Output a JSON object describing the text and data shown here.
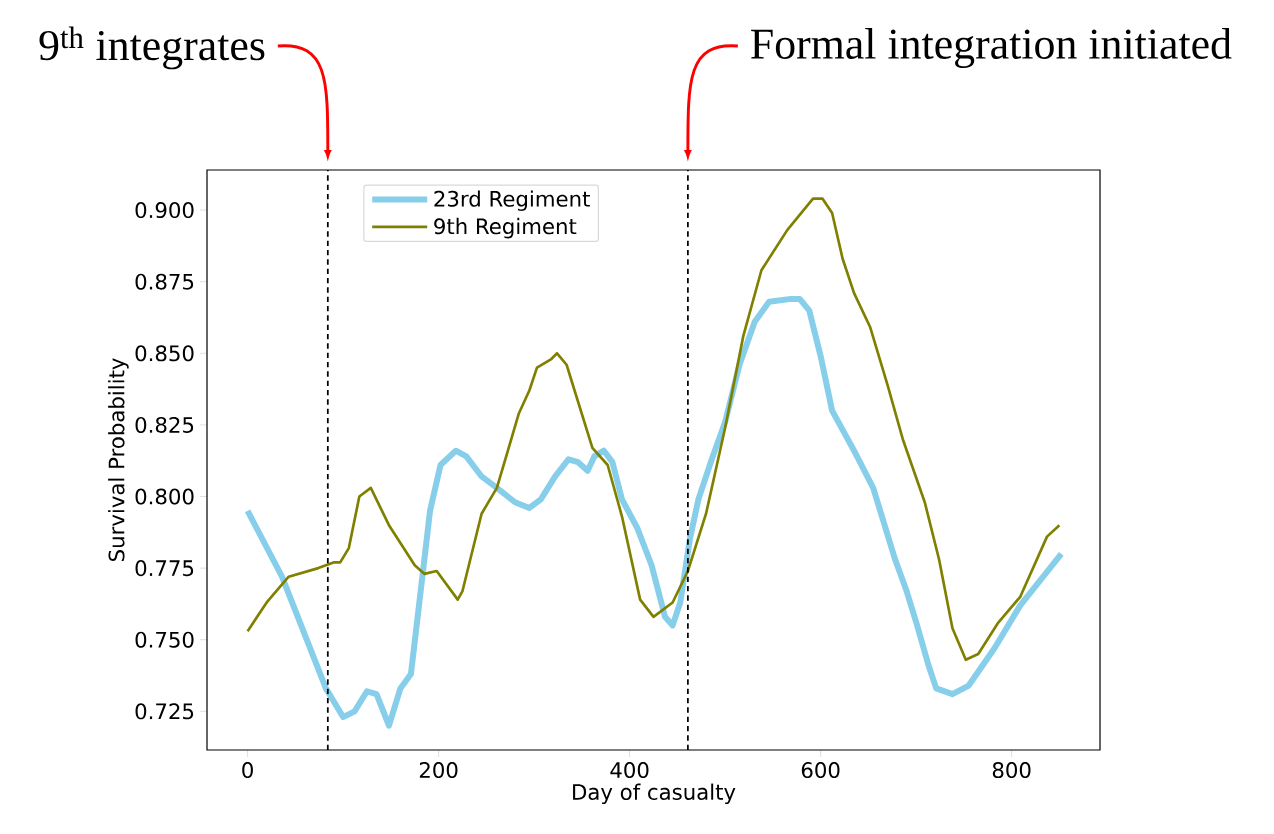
{
  "chart_data": {
    "type": "line",
    "xlabel": "Day of casualty",
    "ylabel": "Survival Probability",
    "xlim": [
      -42.5,
      892.5
    ],
    "ylim": [
      0.7115,
      0.914
    ],
    "xticks": [
      0,
      200,
      400,
      600,
      800
    ],
    "yticks": [
      0.725,
      {
        "value": 0.75,
        "label": "0.750"
      },
      0.775,
      {
        "value": 0.8,
        "label": "0.800"
      },
      0.825,
      {
        "value": 0.85,
        "label": "0.850"
      },
      0.875,
      {
        "value": 0.9,
        "label": "0.900"
      }
    ],
    "legend": "top",
    "marker": "none",
    "line_style": "solid",
    "ref_lines": [
      {
        "axis": "x",
        "value": 84,
        "color": "#000000",
        "line_style": "dashed"
      },
      {
        "axis": "x",
        "value": 461,
        "color": "#000000",
        "line_style": "dashed"
      }
    ],
    "annotations": [
      "9$^{th}$ integrates",
      "Formal integration initiated"
    ],
    "series": [
      {
        "name": "23rd Regiment",
        "color": "#87ceeb",
        "x": [
          0,
          36,
          82,
          100,
          112,
          125,
          135,
          148,
          160,
          171,
          183,
          191,
          202,
          218,
          229,
          245,
          261,
          280,
          295,
          307,
          322,
          336,
          346,
          356,
          363,
          373,
          382,
          392,
          408,
          423,
          437,
          445,
          453,
          463,
          472,
          486,
          500,
          515,
          531,
          546,
          569,
          578,
          588,
          600,
          612,
          635,
          655,
          678,
          690,
          701,
          713,
          721,
          738,
          755,
          782,
          809,
          833,
          852
        ],
        "values": [
          0.795,
          0.772,
          0.733,
          0.723,
          0.725,
          0.732,
          0.731,
          0.72,
          0.733,
          0.738,
          0.772,
          0.795,
          0.811,
          0.816,
          0.814,
          0.807,
          0.803,
          0.798,
          0.796,
          0.799,
          0.807,
          0.813,
          0.812,
          0.809,
          0.814,
          0.816,
          0.812,
          0.799,
          0.789,
          0.776,
          0.758,
          0.755,
          0.763,
          0.785,
          0.799,
          0.813,
          0.826,
          0.846,
          0.861,
          0.868,
          0.869,
          0.869,
          0.865,
          0.849,
          0.83,
          0.816,
          0.803,
          0.778,
          0.767,
          0.755,
          0.741,
          0.733,
          0.731,
          0.734,
          0.747,
          0.762,
          0.772,
          0.78
        ]
      },
      {
        "name": "9th Regiment",
        "color": "#808000",
        "x": [
          0,
          20,
          43,
          74,
          90,
          97,
          106,
          117,
          129,
          148,
          175,
          185,
          198,
          220,
          225,
          245,
          261,
          284,
          295,
          303,
          318,
          324,
          334,
          361,
          377,
          392,
          411,
          425,
          445,
          461,
          480,
          500,
          519,
          538,
          565,
          592,
          602,
          612,
          623,
          635,
          652,
          670,
          686,
          709,
          724,
          738,
          752,
          765,
          786,
          809,
          837,
          850
        ],
        "values": [
          0.753,
          0.763,
          0.772,
          0.775,
          0.777,
          0.777,
          0.782,
          0.8,
          0.803,
          0.79,
          0.776,
          0.773,
          0.774,
          0.764,
          0.767,
          0.794,
          0.803,
          0.829,
          0.837,
          0.845,
          0.848,
          0.85,
          0.846,
          0.817,
          0.811,
          0.793,
          0.764,
          0.758,
          0.763,
          0.774,
          0.794,
          0.824,
          0.856,
          0.879,
          0.893,
          0.904,
          0.904,
          0.899,
          0.883,
          0.871,
          0.859,
          0.839,
          0.82,
          0.798,
          0.778,
          0.754,
          0.743,
          0.745,
          0.756,
          0.765,
          0.786,
          0.79
        ]
      }
    ]
  }
}
